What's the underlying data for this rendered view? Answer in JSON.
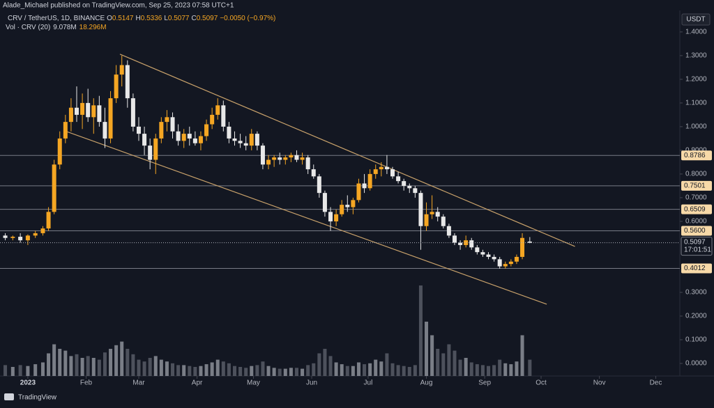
{
  "header": {
    "publisher": "Alade_Michael published on TradingView.com, Sep 25, 2023 07:58 UTC+1",
    "symbol": "CRV / TetherUS, 1D, BINANCE",
    "ohlc": [
      [
        "O",
        "0.5147"
      ],
      [
        "H",
        "0.5336"
      ],
      [
        "L",
        "0.5077"
      ],
      [
        "C",
        "0.5097"
      ]
    ],
    "change": "−0.0050 (−0.97%)",
    "volume_label": "Vol · CRV (20)",
    "volume_values": [
      "9.078M",
      "18.296M"
    ],
    "currency": "USDT",
    "brand": "TradingView"
  },
  "chart_data": {
    "type": "candlestick",
    "up_color": "#f5a623",
    "down_color": "#e8e8e8",
    "columns": [
      "day",
      "open",
      "high",
      "low",
      "close",
      "volume"
    ],
    "candles": [
      [
        -12,
        0.54,
        0.55,
        0.52,
        0.53,
        12
      ],
      [
        -8,
        0.53,
        0.54,
        0.52,
        0.535,
        10
      ],
      [
        -4,
        0.535,
        0.55,
        0.51,
        0.52,
        12
      ],
      [
        0,
        0.52,
        0.545,
        0.5,
        0.54,
        11
      ],
      [
        4,
        0.54,
        0.56,
        0.53,
        0.55,
        13
      ],
      [
        8,
        0.55,
        0.58,
        0.54,
        0.57,
        15
      ],
      [
        11,
        0.57,
        0.66,
        0.56,
        0.64,
        25
      ],
      [
        14,
        0.64,
        0.86,
        0.63,
        0.84,
        35
      ],
      [
        17,
        0.84,
        0.98,
        0.82,
        0.95,
        30
      ],
      [
        20,
        0.95,
        1.05,
        0.93,
        1.02,
        28
      ],
      [
        23,
        1.02,
        1.12,
        0.98,
        1.08,
        22
      ],
      [
        26,
        1.08,
        1.17,
        1.02,
        1.05,
        24
      ],
      [
        29,
        1.05,
        1.14,
        0.99,
        1.1,
        20
      ],
      [
        32,
        1.1,
        1.16,
        1.02,
        1.04,
        22
      ],
      [
        35,
        1.04,
        1.12,
        0.97,
        1.09,
        20
      ],
      [
        38,
        1.09,
        1.13,
        1.0,
        1.02,
        18
      ],
      [
        41,
        1.02,
        1.08,
        0.91,
        0.95,
        26
      ],
      [
        44,
        0.95,
        1.15,
        0.93,
        1.12,
        30
      ],
      [
        47,
        1.12,
        1.26,
        1.1,
        1.22,
        34
      ],
      [
        50,
        1.22,
        1.3,
        1.17,
        1.26,
        38
      ],
      [
        53,
        1.26,
        1.28,
        1.08,
        1.12,
        30
      ],
      [
        56,
        1.12,
        1.14,
        0.98,
        1.0,
        24
      ],
      [
        59,
        1.0,
        1.04,
        0.94,
        0.97,
        18
      ],
      [
        62,
        0.97,
        1.0,
        0.88,
        0.92,
        16
      ],
      [
        65,
        0.92,
        0.95,
        0.82,
        0.86,
        20
      ],
      [
        68,
        0.86,
        0.97,
        0.8,
        0.95,
        22
      ],
      [
        71,
        0.95,
        1.04,
        0.93,
        1.02,
        18
      ],
      [
        74,
        1.02,
        1.07,
        0.98,
        1.04,
        16
      ],
      [
        77,
        1.04,
        1.06,
        0.95,
        0.98,
        14
      ],
      [
        80,
        0.98,
        1.01,
        0.92,
        0.94,
        12
      ],
      [
        83,
        0.94,
        0.99,
        0.91,
        0.97,
        12
      ],
      [
        86,
        0.97,
        1.0,
        0.92,
        0.95,
        11
      ],
      [
        89,
        0.95,
        0.98,
        0.92,
        0.93,
        10
      ],
      [
        92,
        0.93,
        0.98,
        0.9,
        0.96,
        11
      ],
      [
        95,
        0.96,
        1.03,
        0.94,
        1.01,
        13
      ],
      [
        98,
        1.01,
        1.08,
        0.99,
        1.05,
        15
      ],
      [
        101,
        1.05,
        1.12,
        1.03,
        1.09,
        18
      ],
      [
        104,
        1.09,
        1.11,
        0.98,
        1.0,
        16
      ],
      [
        107,
        1.0,
        1.02,
        0.93,
        0.95,
        14
      ],
      [
        110,
        0.95,
        0.98,
        0.92,
        0.94,
        11
      ],
      [
        113,
        0.94,
        0.97,
        0.91,
        0.93,
        10
      ],
      [
        116,
        0.93,
        0.96,
        0.9,
        0.92,
        9
      ],
      [
        119,
        0.92,
        0.99,
        0.9,
        0.97,
        11
      ],
      [
        122,
        0.97,
        0.98,
        0.9,
        0.92,
        12
      ],
      [
        125,
        0.92,
        0.93,
        0.82,
        0.84,
        16
      ],
      [
        128,
        0.84,
        0.88,
        0.82,
        0.86,
        11
      ],
      [
        131,
        0.86,
        0.88,
        0.83,
        0.87,
        9
      ],
      [
        134,
        0.87,
        0.89,
        0.84,
        0.86,
        8
      ],
      [
        137,
        0.86,
        0.88,
        0.84,
        0.87,
        8
      ],
      [
        140,
        0.87,
        0.89,
        0.85,
        0.88,
        9
      ],
      [
        143,
        0.88,
        0.9,
        0.85,
        0.86,
        9
      ],
      [
        146,
        0.86,
        0.89,
        0.84,
        0.87,
        8
      ],
      [
        149,
        0.87,
        0.88,
        0.8,
        0.82,
        12
      ],
      [
        152,
        0.82,
        0.84,
        0.78,
        0.79,
        14
      ],
      [
        155,
        0.79,
        0.8,
        0.7,
        0.72,
        25
      ],
      [
        158,
        0.72,
        0.73,
        0.62,
        0.64,
        30
      ],
      [
        161,
        0.64,
        0.66,
        0.56,
        0.6,
        22
      ],
      [
        164,
        0.6,
        0.65,
        0.58,
        0.63,
        15
      ],
      [
        167,
        0.63,
        0.69,
        0.62,
        0.67,
        13
      ],
      [
        170,
        0.67,
        0.71,
        0.64,
        0.66,
        11
      ],
      [
        173,
        0.66,
        0.7,
        0.63,
        0.69,
        11
      ],
      [
        176,
        0.69,
        0.78,
        0.68,
        0.76,
        15
      ],
      [
        179,
        0.76,
        0.8,
        0.72,
        0.74,
        13
      ],
      [
        182,
        0.74,
        0.82,
        0.73,
        0.8,
        14
      ],
      [
        185,
        0.8,
        0.84,
        0.78,
        0.82,
        18
      ],
      [
        188,
        0.82,
        0.85,
        0.79,
        0.83,
        16
      ],
      [
        191,
        0.83,
        0.88,
        0.8,
        0.82,
        25
      ],
      [
        194,
        0.82,
        0.83,
        0.78,
        0.79,
        14
      ],
      [
        197,
        0.79,
        0.81,
        0.76,
        0.77,
        12
      ],
      [
        200,
        0.77,
        0.78,
        0.73,
        0.75,
        11
      ],
      [
        203,
        0.75,
        0.76,
        0.72,
        0.74,
        10
      ],
      [
        206,
        0.74,
        0.75,
        0.7,
        0.72,
        12
      ],
      [
        209,
        0.72,
        0.73,
        0.48,
        0.58,
        100
      ],
      [
        212,
        0.58,
        0.68,
        0.56,
        0.63,
        60
      ],
      [
        215,
        0.63,
        0.71,
        0.61,
        0.64,
        45
      ],
      [
        218,
        0.64,
        0.66,
        0.6,
        0.62,
        30
      ],
      [
        221,
        0.62,
        0.63,
        0.57,
        0.58,
        25
      ],
      [
        224,
        0.58,
        0.59,
        0.53,
        0.54,
        35
      ],
      [
        227,
        0.54,
        0.55,
        0.5,
        0.51,
        28
      ],
      [
        230,
        0.51,
        0.52,
        0.48,
        0.5,
        18
      ],
      [
        233,
        0.5,
        0.54,
        0.49,
        0.52,
        20
      ],
      [
        236,
        0.52,
        0.53,
        0.48,
        0.49,
        15
      ],
      [
        239,
        0.49,
        0.5,
        0.46,
        0.47,
        13
      ],
      [
        242,
        0.47,
        0.48,
        0.45,
        0.46,
        12
      ],
      [
        245,
        0.46,
        0.47,
        0.44,
        0.45,
        11
      ],
      [
        248,
        0.45,
        0.46,
        0.43,
        0.44,
        12
      ],
      [
        251,
        0.44,
        0.45,
        0.4,
        0.41,
        18
      ],
      [
        254,
        0.41,
        0.43,
        0.4,
        0.42,
        14
      ],
      [
        257,
        0.42,
        0.44,
        0.41,
        0.43,
        13
      ],
      [
        260,
        0.43,
        0.46,
        0.42,
        0.45,
        16
      ],
      [
        263,
        0.45,
        0.55,
        0.44,
        0.53,
        45
      ],
      [
        267,
        0.5147,
        0.5336,
        0.5077,
        0.5097,
        18
      ]
    ],
    "xlim": [
      -14.8,
      346.8
    ],
    "ylim": [
      -0.053,
      1.432
    ],
    "volume_lim": [
      0,
      100
    ],
    "xticks": [
      {
        "value": 0,
        "label": "2023"
      },
      {
        "value": 31,
        "label": "Feb"
      },
      {
        "value": 59,
        "label": "Mar"
      },
      {
        "value": 90,
        "label": "Apr"
      },
      {
        "value": 120,
        "label": "May"
      },
      {
        "value": 151,
        "label": "Jun"
      },
      {
        "value": 181,
        "label": "Jul"
      },
      {
        "value": 212,
        "label": "Aug"
      },
      {
        "value": 243,
        "label": "Sep"
      },
      {
        "value": 273,
        "label": "Oct"
      },
      {
        "value": 304,
        "label": "Nov"
      },
      {
        "value": 334,
        "label": "Dec"
      }
    ],
    "yticks": [
      {
        "value": 1.4,
        "label": "1.4000"
      },
      {
        "value": 1.3,
        "label": "1.3000"
      },
      {
        "value": 1.2,
        "label": "1.2000"
      },
      {
        "value": 1.1,
        "label": "1.1000"
      },
      {
        "value": 1.0,
        "label": "1.0000"
      },
      {
        "value": 0.9,
        "label": "0.9000"
      },
      {
        "value": 0.8,
        "label": "0.8000"
      },
      {
        "value": 0.7,
        "label": "0.7000"
      },
      {
        "value": 0.6,
        "label": "0.6000"
      },
      {
        "value": 0.3,
        "label": "0.3000"
      },
      {
        "value": 0.2,
        "label": "0.2000"
      },
      {
        "value": 0.1,
        "label": "0.1000"
      },
      {
        "value": 0.0,
        "label": "0.0000"
      }
    ],
    "levels": [
      0.8786,
      0.7501,
      0.6509,
      {
        "value": 0.56,
        "label": "0.5600"
      },
      0.4012
    ],
    "last_price": {
      "value": 0.5097,
      "label": "0.5097",
      "countdown": "17:01:51"
    },
    "trendlines": [
      {
        "color": "#c9a26b",
        "points": [
          [
            49,
            1.306
          ],
          [
            291,
            0.494
          ]
        ]
      },
      {
        "color": "#c9a26b",
        "points": [
          [
            19.7,
            0.982
          ],
          [
            276,
            0.25
          ]
        ]
      }
    ]
  }
}
